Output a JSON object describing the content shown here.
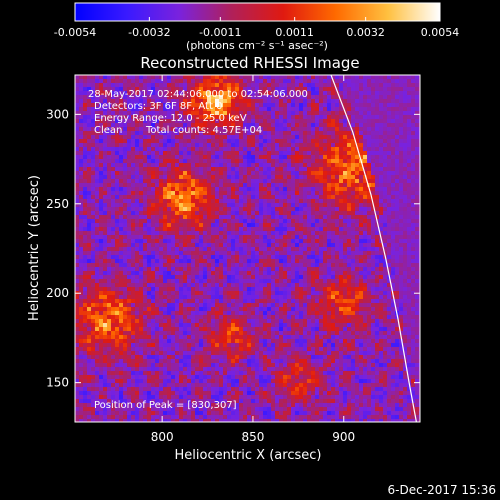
{
  "chart_data": {
    "type": "heatmap",
    "title": "Reconstructed RHESSI Image",
    "xlabel": "Heliocentric X (arcsec)",
    "ylabel": "Heliocentric Y (arcsec)",
    "xlim": [
      752,
      942
    ],
    "ylim": [
      128,
      322
    ],
    "x_ticks": [
      800,
      850,
      900
    ],
    "y_ticks": [
      150,
      200,
      250,
      300
    ],
    "colorbar": {
      "label": "(photons cm⁻² s⁻¹ asec⁻²)",
      "range": [
        -0.0054,
        0.0054
      ],
      "ticks": [
        -0.0054,
        -0.0032,
        -0.0011,
        0.0011,
        0.0032,
        0.0054
      ],
      "tick_labels": [
        "-0.0054",
        "-0.0032",
        "-0.0011",
        "0.0011",
        "0.0032",
        "0.0054"
      ],
      "colors": [
        "#0000ff",
        "#3a1aff",
        "#7a22dd",
        "#b0205a",
        "#e01a10",
        "#ff6a00",
        "#ffc040",
        "#ffffff"
      ]
    },
    "annotations": {
      "time_range": "28-May-2017 02:44:06.000 to 02:54:06.000",
      "detectors": "Detectors: 3F 6F 8F, Att 0",
      "energy": "Energy Range: 12.0 - 25.0 keV",
      "clean_method": "Clean",
      "total_counts": "Total counts: 4.57E+04",
      "peak": "Position of Peak = [830,307]"
    },
    "limb_curve": [
      [
        893,
        322
      ],
      [
        905,
        290
      ],
      [
        915,
        255
      ],
      [
        923,
        220
      ],
      [
        930,
        185
      ],
      [
        936,
        150
      ],
      [
        940,
        128
      ]
    ],
    "bright_regions": [
      {
        "x": 830,
        "y": 307,
        "r": 14,
        "v": 0.0054
      },
      {
        "x": 812,
        "y": 253,
        "r": 16,
        "v": 0.0045
      },
      {
        "x": 905,
        "y": 270,
        "r": 22,
        "v": 0.004
      },
      {
        "x": 770,
        "y": 185,
        "r": 18,
        "v": 0.0042
      },
      {
        "x": 838,
        "y": 175,
        "r": 12,
        "v": 0.003
      },
      {
        "x": 900,
        "y": 195,
        "r": 14,
        "v": 0.0033
      },
      {
        "x": 875,
        "y": 150,
        "r": 12,
        "v": 0.0025
      }
    ]
  },
  "footer": {
    "timestamp": "6-Dec-2017 15:36"
  }
}
